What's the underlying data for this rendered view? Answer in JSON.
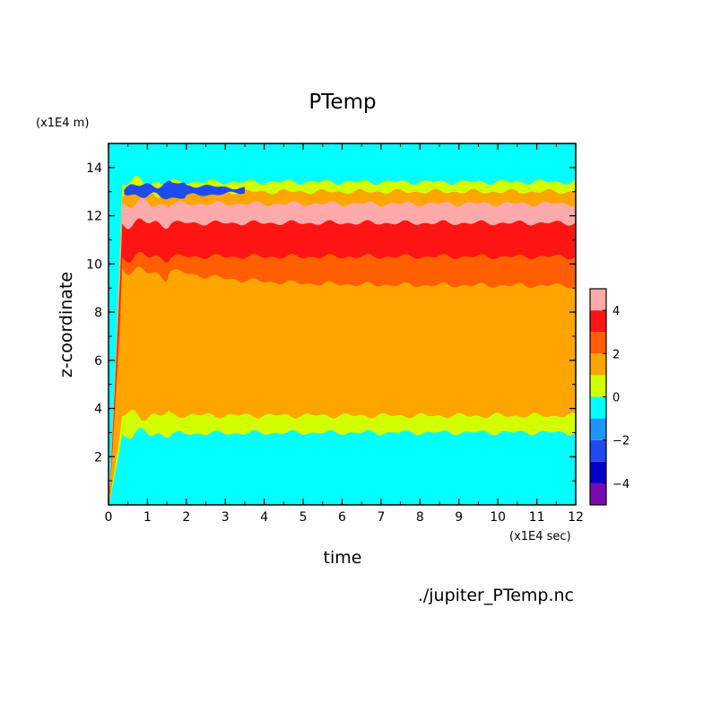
{
  "chart_data": {
    "type": "heatmap",
    "subtype": "filled-contour",
    "title": "PTemp",
    "xlabel": "time",
    "ylabel": "z-coordinate",
    "x_unit": "(x1E4 sec)",
    "y_unit": "(x1E4 m)",
    "footer": "./jupiter_PTemp.nc",
    "xlim": [
      0,
      12
    ],
    "ylim": [
      0,
      15
    ],
    "x_ticks": [
      0,
      1,
      2,
      3,
      4,
      5,
      6,
      7,
      8,
      9,
      10,
      11,
      12
    ],
    "y_ticks": [
      2,
      4,
      6,
      8,
      10,
      12,
      14
    ],
    "colorbar": {
      "levels": [
        -5,
        -4,
        -3,
        -2,
        -1,
        0,
        1,
        2,
        3,
        4,
        5
      ],
      "tick_labels": [
        -4,
        -2,
        0,
        2,
        4
      ],
      "colors": [
        "#7a0ab0",
        "#0000c8",
        "#1e4bf0",
        "#1e96ff",
        "#00ffff",
        "#d2ff00",
        "#ffa500",
        "#ff5f00",
        "#ff1414",
        "#ffaaaa"
      ]
    },
    "bands": [
      {
        "level_range": [
          -1,
          0
        ],
        "color": "#00ffff",
        "z_top_late": 3.0
      },
      {
        "level_range": [
          0,
          1
        ],
        "color": "#d2ff00",
        "z_bottom_late": 3.0,
        "z_top_late": 3.7
      },
      {
        "level_range": [
          1,
          2
        ],
        "color": "#ffa500",
        "z_bottom_late": 3.7,
        "z_top_late": 9.1
      },
      {
        "level_range": [
          2,
          3
        ],
        "color": "#ff5f00",
        "z_bottom_late": 9.1,
        "z_top_late": 10.3
      },
      {
        "level_range": [
          3,
          4
        ],
        "color": "#ff1414",
        "z_bottom_late": 10.3,
        "z_top_late": 11.7
      },
      {
        "level_range": [
          4,
          5
        ],
        "color": "#ffaaaa",
        "z_bottom_late": 11.7,
        "z_top_late": 12.5
      },
      {
        "level_range": [
          0,
          2
        ],
        "color": "#ffa500",
        "z_bottom_late": 12.5,
        "z_top_late": 13.0
      },
      {
        "level_range": [
          -1,
          1
        ],
        "color": "#d2ff00",
        "z_bottom_late": 13.0,
        "z_top_late": 13.4
      },
      {
        "level_range": [
          -3,
          -1
        ],
        "color": "#1e4bf0",
        "time_range": [
          0.4,
          3.5
        ],
        "z_range": [
          12.8,
          13.3
        ]
      }
    ]
  }
}
